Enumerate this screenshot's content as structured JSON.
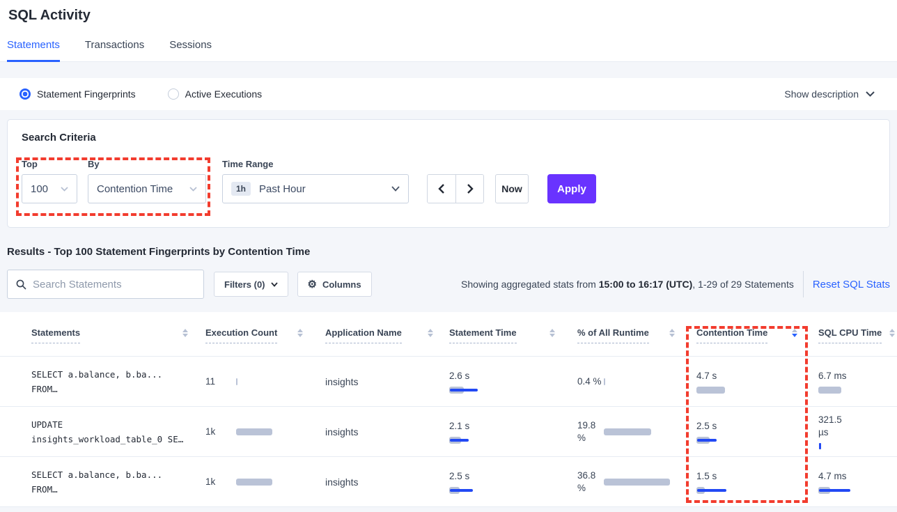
{
  "page": {
    "title": "SQL Activity"
  },
  "tabs": [
    {
      "label": "Statements",
      "active": true
    },
    {
      "label": "Transactions",
      "active": false
    },
    {
      "label": "Sessions",
      "active": false
    }
  ],
  "view_toggle": {
    "options": [
      {
        "label": "Statement Fingerprints",
        "selected": true
      },
      {
        "label": "Active Executions",
        "selected": false
      }
    ],
    "show_description_label": "Show description"
  },
  "search_criteria": {
    "heading": "Search Criteria",
    "top": {
      "label": "Top",
      "value": "100"
    },
    "by": {
      "label": "By",
      "value": "Contention Time"
    },
    "time_range": {
      "label": "Time Range",
      "badge": "1h",
      "value": "Past Hour"
    },
    "now_label": "Now",
    "apply_label": "Apply"
  },
  "results": {
    "heading": "Results - Top 100 Statement Fingerprints by Contention Time",
    "search_placeholder": "Search Statements",
    "filters_label": "Filters (0)",
    "columns_label": "Columns",
    "stats_prefix": "Showing aggregated stats from ",
    "stats_bold": "15:00 to 16:17 (UTC)",
    "stats_suffix": ", 1-29 of 29 Statements",
    "reset_label": "Reset SQL Stats"
  },
  "table": {
    "columns": [
      {
        "label": "Statements",
        "sort": "none"
      },
      {
        "label": "Execution Count",
        "sort": "none"
      },
      {
        "label": "Application Name",
        "sort": "none"
      },
      {
        "label": "Statement Time",
        "sort": "none"
      },
      {
        "label": "% of All Runtime",
        "sort": "none"
      },
      {
        "label": "Contention Time",
        "sort": "desc"
      },
      {
        "label": "SQL CPU Time",
        "sort": "none"
      }
    ],
    "rows": [
      {
        "statement": [
          "SELECT a.balance, b.ba...",
          "FROM…"
        ],
        "execution_count": {
          "text": "11",
          "bar": {
            "gray": 2,
            "blue": 0
          }
        },
        "application": "insights",
        "statement_time": {
          "text": "2.6 s",
          "bar": {
            "gray": 21,
            "blue": 40
          }
        },
        "pct_runtime": {
          "text": "0.4 %",
          "bar": {
            "gray": 2,
            "blue": 0
          }
        },
        "contention_time": {
          "text": "4.7 s",
          "bar": {
            "gray": 41,
            "blue": 0
          }
        },
        "sql_cpu_time": {
          "text": "6.7 ms",
          "bar": {
            "gray": 33,
            "blue": 0
          }
        }
      },
      {
        "statement": [
          "UPDATE",
          "insights_workload_table_0 SE…"
        ],
        "execution_count": {
          "text": "1k",
          "bar": {
            "gray": 52,
            "blue": 0
          }
        },
        "application": "insights",
        "statement_time": {
          "text": "2.1 s",
          "bar": {
            "gray": 17,
            "blue": 27
          }
        },
        "pct_runtime": {
          "text": "19.8 %",
          "bar": {
            "gray": 68,
            "blue": 0
          }
        },
        "contention_time": {
          "text": "2.5 s",
          "bar": {
            "gray": 19,
            "blue": 28
          }
        },
        "sql_cpu_time": {
          "text": "321.5 µs",
          "bar": {
            "gray": 0,
            "blue": 3
          }
        }
      },
      {
        "statement": [
          "SELECT a.balance, b.ba...",
          "FROM…"
        ],
        "execution_count": {
          "text": "1k",
          "bar": {
            "gray": 52,
            "blue": 0
          }
        },
        "application": "insights",
        "statement_time": {
          "text": "2.5 s",
          "bar": {
            "gray": 15,
            "blue": 33
          }
        },
        "pct_runtime": {
          "text": "36.8 %",
          "bar": {
            "gray": 95,
            "blue": 0
          }
        },
        "contention_time": {
          "text": "1.5 s",
          "bar": {
            "gray": 12,
            "blue": 42
          }
        },
        "sql_cpu_time": {
          "text": "4.7 ms",
          "bar": {
            "gray": 17,
            "blue": 45
          }
        }
      }
    ]
  },
  "annotations": {
    "color": "#f23c2e",
    "regions": [
      "top-by-selects",
      "contention-time-column"
    ]
  },
  "colors": {
    "accent_blue": "#2962ff",
    "apply_purple": "#6933ff",
    "bar_gray": "#bac3d7",
    "bar_blue": "#2249f4",
    "annotation_red": "#f23c2e",
    "page_bg": "#f4f6fa"
  }
}
